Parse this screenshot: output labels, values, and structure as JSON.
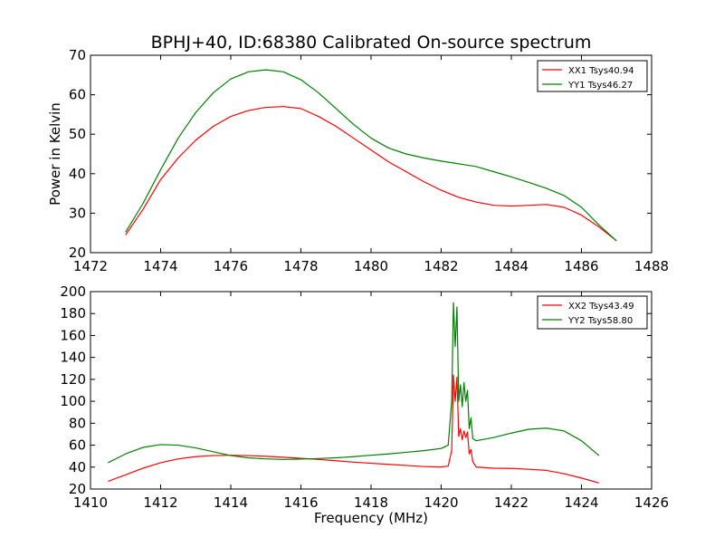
{
  "title": "BPHJ+40, ID:68380 Calibrated On-source spectrum",
  "chart_data": [
    {
      "type": "line",
      "panel": "top",
      "title": "BPHJ+40, ID:68380 Calibrated On-source spectrum",
      "xlabel": "",
      "ylabel": "Power in Kelvin",
      "xlim": [
        1472,
        1488
      ],
      "ylim": [
        20,
        70
      ],
      "xticks": [
        1472,
        1474,
        1476,
        1478,
        1480,
        1482,
        1484,
        1486,
        1488
      ],
      "yticks": [
        20,
        30,
        40,
        50,
        60,
        70
      ],
      "grid": false,
      "legend_position": "top-right",
      "series": [
        {
          "name": "XX1 Tsys40.94",
          "color": "#ff0000",
          "x": [
            1473.0,
            1473.5,
            1474.0,
            1474.5,
            1475.0,
            1475.5,
            1476.0,
            1476.5,
            1477.0,
            1477.5,
            1478.0,
            1478.5,
            1479.0,
            1479.5,
            1480.0,
            1480.5,
            1481.0,
            1481.5,
            1482.0,
            1482.5,
            1483.0,
            1483.5,
            1484.0,
            1484.5,
            1485.0,
            1485.5,
            1486.0,
            1486.5,
            1487.0
          ],
          "y": [
            24.5,
            31.0,
            38.5,
            44.0,
            48.5,
            52.0,
            54.5,
            56.0,
            56.8,
            57.0,
            56.5,
            54.5,
            52.0,
            49.0,
            46.0,
            43.0,
            40.5,
            38.0,
            35.8,
            34.0,
            32.8,
            32.0,
            31.8,
            32.0,
            32.2,
            31.5,
            29.5,
            26.5,
            23.0
          ]
        },
        {
          "name": "YY1 Tsys46.27",
          "color": "#008000",
          "x": [
            1473.0,
            1473.5,
            1474.0,
            1474.5,
            1475.0,
            1475.5,
            1476.0,
            1476.5,
            1477.0,
            1477.5,
            1478.0,
            1478.5,
            1479.0,
            1479.5,
            1480.0,
            1480.5,
            1481.0,
            1481.5,
            1482.0,
            1482.5,
            1483.0,
            1483.5,
            1484.0,
            1484.5,
            1485.0,
            1485.5,
            1486.0,
            1486.5,
            1487.0
          ],
          "y": [
            25.2,
            32.5,
            41.0,
            49.0,
            55.5,
            60.5,
            64.0,
            65.8,
            66.3,
            65.8,
            63.8,
            60.5,
            56.5,
            52.5,
            49.0,
            46.5,
            45.0,
            44.0,
            43.2,
            42.5,
            41.8,
            40.5,
            39.2,
            37.8,
            36.3,
            34.5,
            31.5,
            27.0,
            23.0
          ]
        }
      ]
    },
    {
      "type": "line",
      "panel": "bottom",
      "title": "",
      "xlabel": "Frequency (MHz)",
      "ylabel": "",
      "xlim": [
        1410,
        1426
      ],
      "ylim": [
        20,
        200
      ],
      "xticks": [
        1410,
        1412,
        1414,
        1416,
        1418,
        1420,
        1422,
        1424,
        1426
      ],
      "yticks": [
        20,
        40,
        60,
        80,
        100,
        120,
        140,
        160,
        180,
        200
      ],
      "grid": false,
      "legend_position": "top-right",
      "series": [
        {
          "name": "XX2 Tsys43.49",
          "color": "#ff0000",
          "x": [
            1410.5,
            1411.0,
            1411.5,
            1412.0,
            1412.5,
            1413.0,
            1413.5,
            1414.0,
            1414.5,
            1415.0,
            1415.5,
            1416.0,
            1416.5,
            1417.0,
            1417.5,
            1418.0,
            1418.5,
            1419.0,
            1419.5,
            1420.0,
            1420.2,
            1420.3,
            1420.35,
            1420.4,
            1420.45,
            1420.5,
            1420.55,
            1420.6,
            1420.65,
            1420.7,
            1420.75,
            1420.8,
            1420.85,
            1420.9,
            1421.0,
            1421.5,
            1422.0,
            1422.5,
            1423.0,
            1423.5,
            1424.0,
            1424.5
          ],
          "y": [
            27,
            33,
            39,
            44,
            47.5,
            49.5,
            50.5,
            50.8,
            50.5,
            49.8,
            49,
            48,
            47,
            45.8,
            44.5,
            43.5,
            42.5,
            41.5,
            40.5,
            40,
            41,
            55,
            124,
            100,
            122,
            68,
            75,
            65,
            73,
            67,
            72,
            52,
            56,
            45,
            40,
            39,
            38.8,
            38,
            37,
            34,
            30,
            25.5
          ]
        },
        {
          "name": "YY2 Tsys58.80",
          "color": "#008000",
          "x": [
            1410.5,
            1411.0,
            1411.5,
            1412.0,
            1412.5,
            1413.0,
            1413.5,
            1414.0,
            1414.5,
            1415.0,
            1415.5,
            1416.0,
            1416.5,
            1417.0,
            1417.5,
            1418.0,
            1418.5,
            1419.0,
            1419.5,
            1420.0,
            1420.2,
            1420.3,
            1420.35,
            1420.4,
            1420.45,
            1420.5,
            1420.55,
            1420.6,
            1420.65,
            1420.7,
            1420.75,
            1420.8,
            1420.85,
            1420.9,
            1421.0,
            1421.5,
            1422.0,
            1422.5,
            1423.0,
            1423.5,
            1424.0,
            1424.5
          ],
          "y": [
            44,
            52,
            58,
            60.5,
            60,
            57.5,
            54,
            50.5,
            48.5,
            47.5,
            47,
            47.3,
            47.8,
            48.5,
            49.5,
            50.8,
            52,
            53.5,
            55,
            57,
            60,
            100,
            190,
            150,
            186,
            100,
            115,
            95,
            117,
            100,
            110,
            75,
            85,
            66,
            64,
            67,
            71,
            74.5,
            75.5,
            73,
            64,
            50.5
          ]
        }
      ]
    }
  ]
}
